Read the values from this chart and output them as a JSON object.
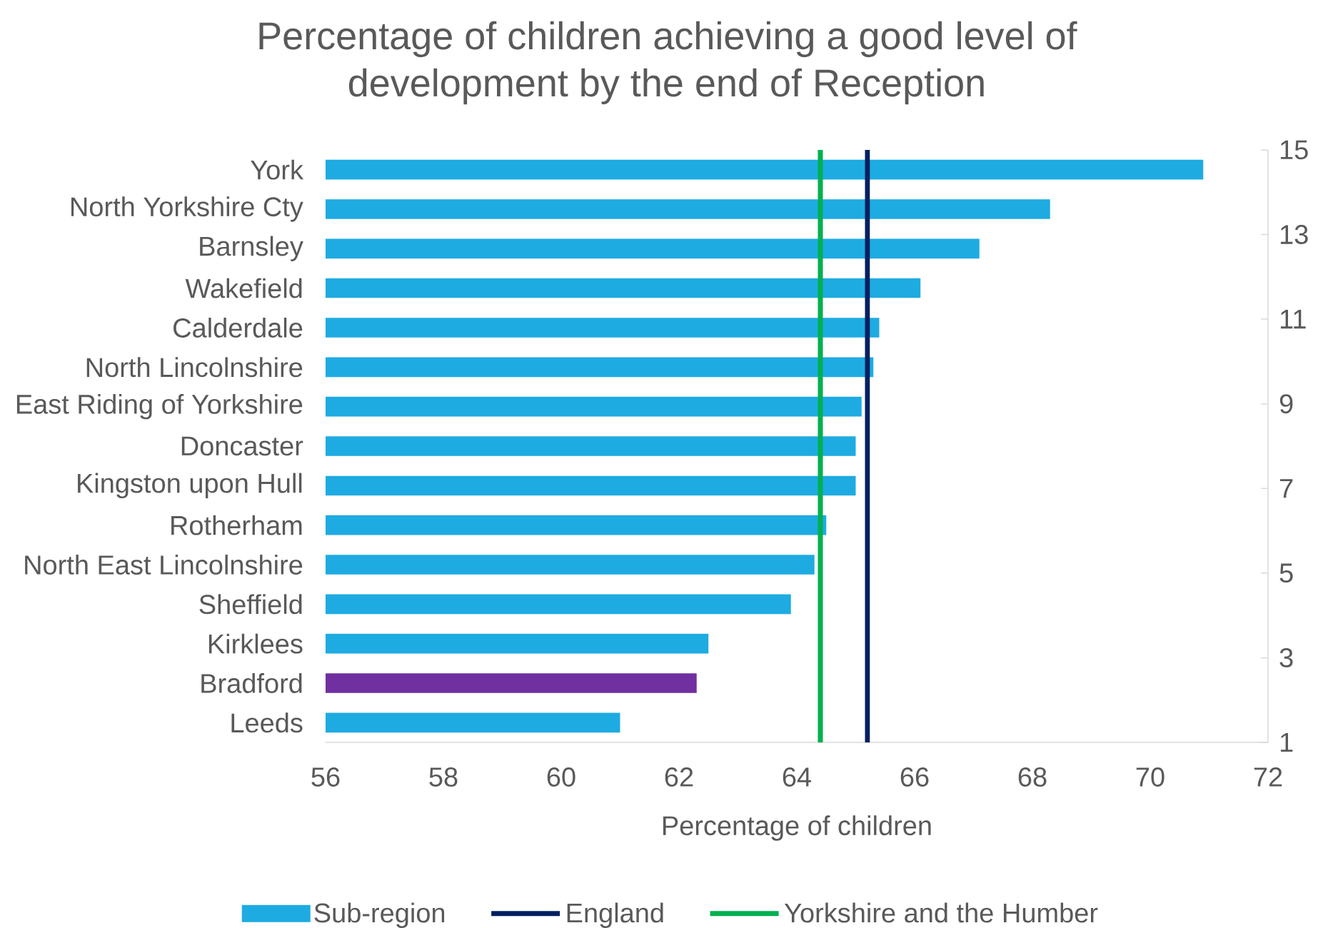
{
  "chart_data": {
    "type": "bar",
    "orientation": "horizontal",
    "title": "Percentage of children achieving a good level of development by the end of Reception",
    "xlabel": "Percentage of children",
    "categories": [
      "York",
      "North Yorkshire Cty",
      "Barnsley",
      "Wakefield",
      "Calderdale",
      "North Lincolnshire",
      "East Riding of Yorkshire",
      "Doncaster",
      "Kingston upon Hull",
      "Rotherham",
      "North East Lincolnshire",
      "Sheffield",
      "Kirklees",
      "Bradford",
      "Leeds"
    ],
    "series": [
      {
        "name": "Sub-region",
        "color": "#1eabe2",
        "colors": [
          "#1eabe2",
          "#1eabe2",
          "#1eabe2",
          "#1eabe2",
          "#1eabe2",
          "#1eabe2",
          "#1eabe2",
          "#1eabe2",
          "#1eabe2",
          "#1eabe2",
          "#1eabe2",
          "#1eabe2",
          "#1eabe2",
          "#7030a0",
          "#1eabe2"
        ],
        "values": [
          70.9,
          68.3,
          67.1,
          66.1,
          65.4,
          65.3,
          65.1,
          65.0,
          65.0,
          64.5,
          64.3,
          63.9,
          62.5,
          62.3,
          61.0
        ]
      }
    ],
    "ref_lines": [
      {
        "axis": "x",
        "value": 65.2,
        "label": "England",
        "color": "#002060"
      },
      {
        "axis": "x",
        "value": 64.4,
        "label": "Yorkshire and the Humber",
        "color": "#00b050"
      }
    ],
    "xlim": [
      56,
      72
    ],
    "xticks": [
      56,
      58,
      60,
      62,
      64,
      66,
      68,
      70,
      72
    ],
    "y2lim": [
      1,
      15
    ],
    "y2ticks": [
      1,
      3,
      5,
      7,
      9,
      11,
      13,
      15
    ],
    "legend": "bottom"
  }
}
